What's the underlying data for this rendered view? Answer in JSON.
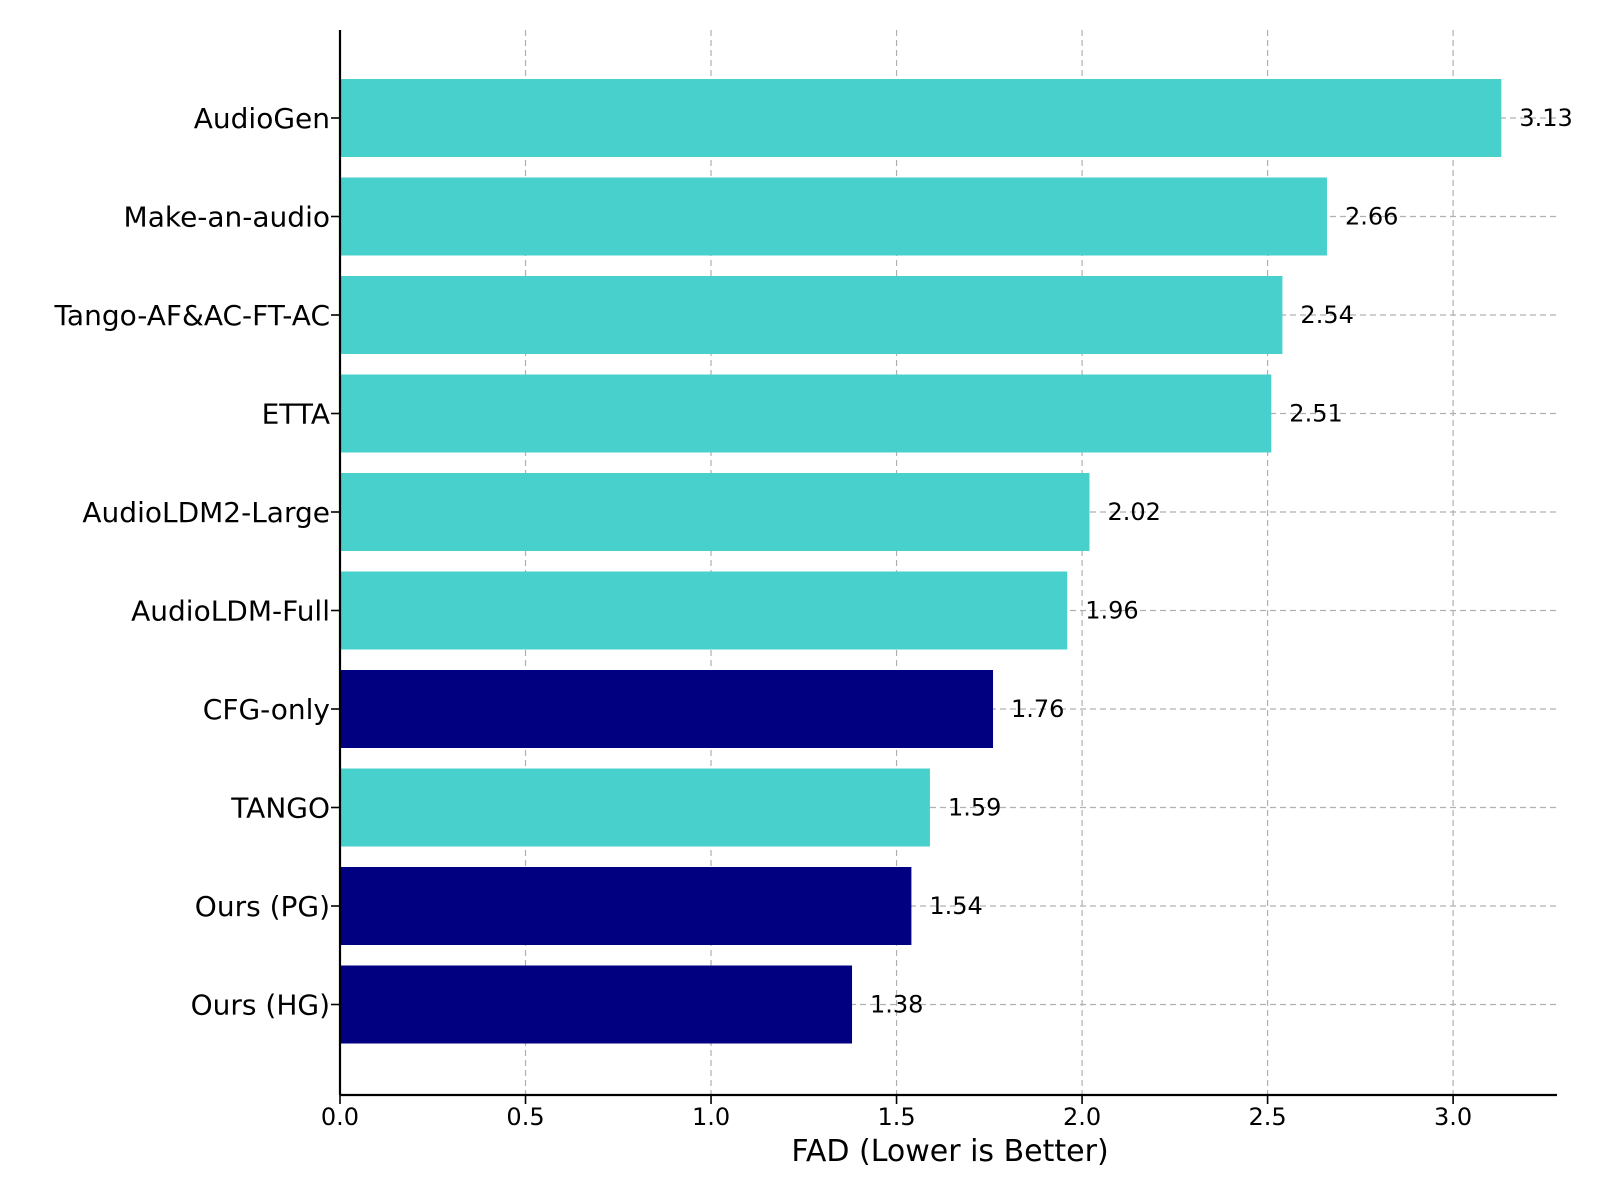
{
  "chart_data": {
    "type": "bar",
    "orientation": "horizontal",
    "title": "",
    "xlabel": "FAD (Lower is Better)",
    "ylabel": "",
    "xlim": [
      0,
      3.28
    ],
    "xticks": [
      0.0,
      0.5,
      1.0,
      1.5,
      2.0,
      2.5,
      3.0
    ],
    "xtick_labels": [
      "0.0",
      "0.5",
      "1.0",
      "1.5",
      "2.0",
      "2.5",
      "3.0"
    ],
    "grid": true,
    "categories": [
      "AudioGen",
      "Make-an-audio",
      "Tango-AF&AC-FT-AC",
      "ETTA",
      "AudioLDM2-Large",
      "AudioLDM-Full",
      "CFG-only",
      "TANGO",
      "Ours (PG)",
      "Ours (HG)"
    ],
    "values": [
      3.13,
      2.66,
      2.54,
      2.51,
      2.02,
      1.96,
      1.76,
      1.59,
      1.54,
      1.38
    ],
    "value_labels": [
      "3.13",
      "2.66",
      "2.54",
      "2.51",
      "2.02",
      "1.96",
      "1.76",
      "1.59",
      "1.54",
      "1.38"
    ],
    "bar_colors": [
      "#48d1cc",
      "#48d1cc",
      "#48d1cc",
      "#48d1cc",
      "#48d1cc",
      "#48d1cc",
      "#000080",
      "#48d1cc",
      "#000080",
      "#000080"
    ],
    "colors": {
      "baseline": "#48d1cc",
      "ours": "#000080"
    }
  }
}
